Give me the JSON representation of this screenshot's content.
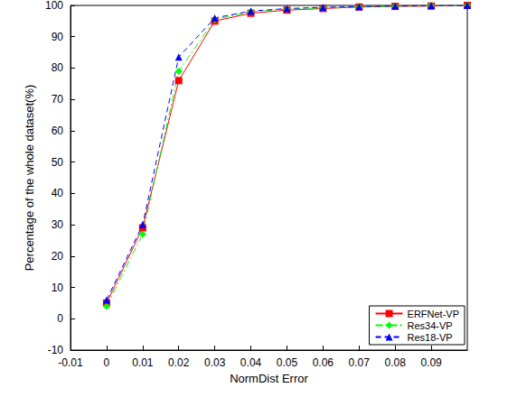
{
  "chart_data": {
    "type": "line",
    "x_label": "NormDist Error",
    "y_label": "Percentage of the whole dataset(%)",
    "x": [
      0,
      0.01,
      0.02,
      0.03,
      0.04,
      0.05,
      0.06,
      0.07,
      0.08,
      0.09,
      0.1
    ],
    "series": [
      {
        "name": "ERFNet-VP",
        "color": "#ff0000",
        "marker": "square",
        "line_style": "solid",
        "values": [
          5,
          29,
          76,
          95,
          97.5,
          98.5,
          99,
          99.5,
          99.7,
          99.8,
          100
        ]
      },
      {
        "name": "Res34-VP",
        "color": "#00ff00",
        "marker": "diamond",
        "line_style": "dashdot",
        "values": [
          4,
          27,
          79,
          95.5,
          98,
          98.8,
          99.2,
          99.5,
          99.7,
          99.9,
          100
        ]
      },
      {
        "name": "Res18-VP",
        "color": "#0000ff",
        "marker": "triangle",
        "line_style": "dashed",
        "values": [
          6,
          30,
          83.5,
          96,
          98.2,
          99,
          99.4,
          99.6,
          99.8,
          99.9,
          100
        ]
      }
    ],
    "xlim": [
      -0.01,
      0.1
    ],
    "xticks": [
      -0.01,
      0,
      0.01,
      0.02,
      0.03,
      0.04,
      0.05,
      0.06,
      0.07,
      0.08,
      0.09
    ],
    "ylim": [
      -10,
      100
    ],
    "yticks": [
      -10,
      0,
      10,
      20,
      30,
      40,
      50,
      60,
      70,
      80,
      90,
      100
    ],
    "grid": false,
    "legend": "lower right"
  }
}
